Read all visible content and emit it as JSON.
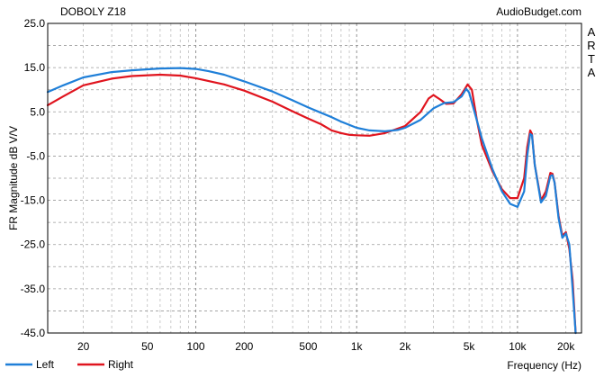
{
  "header": {
    "title": "DOBOLY Z18",
    "source": "AudioBudget.com",
    "side_text": [
      "A",
      "R",
      "T",
      "A"
    ]
  },
  "chart_data": {
    "type": "line",
    "title": "DOBOLY Z18",
    "xlabel": "Frequency (Hz)",
    "ylabel": "FR Magnitude dB V/V",
    "x_scale": "log",
    "xlim": [
      12,
      25000
    ],
    "ylim": [
      -45,
      25
    ],
    "y_ticks": [
      25.0,
      15.0,
      5.0,
      -5.0,
      -15.0,
      -25.0,
      -35.0,
      -45.0
    ],
    "y_tick_labels": [
      "25.0",
      "15.0",
      "5.0",
      "-5.0",
      "-15.0",
      "-25.0",
      "-35.0",
      "-45.0"
    ],
    "x_ticks": [
      20,
      50,
      100,
      200,
      500,
      1000,
      2000,
      5000,
      10000,
      20000
    ],
    "x_tick_labels": [
      "20",
      "50",
      "100",
      "200",
      "500",
      "1k",
      "2k",
      "5k",
      "10k",
      "20k"
    ],
    "grid": true,
    "legend_position": "bottom-left",
    "series": [
      {
        "name": "Left",
        "color": "#1f7fd8",
        "points": [
          [
            12,
            9.5
          ],
          [
            15,
            11
          ],
          [
            20,
            12.8
          ],
          [
            30,
            14
          ],
          [
            40,
            14.4
          ],
          [
            60,
            14.8
          ],
          [
            80,
            14.9
          ],
          [
            100,
            14.7
          ],
          [
            120,
            14.2
          ],
          [
            150,
            13.4
          ],
          [
            200,
            11.9
          ],
          [
            300,
            9.6
          ],
          [
            400,
            7.6
          ],
          [
            500,
            6
          ],
          [
            600,
            4.8
          ],
          [
            700,
            3.8
          ],
          [
            800,
            2.8
          ],
          [
            1000,
            1.4
          ],
          [
            1200,
            0.8
          ],
          [
            1500,
            0.6
          ],
          [
            1800,
            0.9
          ],
          [
            2000,
            1.4
          ],
          [
            2500,
            3.2
          ],
          [
            3000,
            5.8
          ],
          [
            3500,
            7
          ],
          [
            4000,
            7.2
          ],
          [
            4500,
            8.5
          ],
          [
            4800,
            10.2
          ],
          [
            5000,
            9.4
          ],
          [
            5500,
            4
          ],
          [
            6000,
            -1
          ],
          [
            7000,
            -8
          ],
          [
            8000,
            -13
          ],
          [
            9000,
            -15.8
          ],
          [
            10000,
            -16.5
          ],
          [
            11000,
            -13
          ],
          [
            11500,
            -5
          ],
          [
            12000,
            0
          ],
          [
            12300,
            -0.3
          ],
          [
            12800,
            -7
          ],
          [
            14000,
            -15.5
          ],
          [
            15000,
            -14
          ],
          [
            16000,
            -9.5
          ],
          [
            16500,
            -9.3
          ],
          [
            17000,
            -11
          ],
          [
            18000,
            -19
          ],
          [
            19000,
            -23.5
          ],
          [
            20000,
            -22.5
          ],
          [
            21000,
            -25
          ],
          [
            22000,
            -35
          ],
          [
            23000,
            -45
          ]
        ]
      },
      {
        "name": "Right",
        "color": "#e0141e",
        "points": [
          [
            12,
            6.5
          ],
          [
            15,
            8.5
          ],
          [
            20,
            11
          ],
          [
            30,
            12.5
          ],
          [
            40,
            13.1
          ],
          [
            60,
            13.4
          ],
          [
            80,
            13.2
          ],
          [
            100,
            12.6
          ],
          [
            150,
            11.2
          ],
          [
            200,
            9.8
          ],
          [
            300,
            7.3
          ],
          [
            400,
            5.1
          ],
          [
            500,
            3.5
          ],
          [
            600,
            2.2
          ],
          [
            700,
            0.8
          ],
          [
            800,
            0.2
          ],
          [
            900,
            -0.2
          ],
          [
            1000,
            -0.3
          ],
          [
            1200,
            -0.4
          ],
          [
            1500,
            0.2
          ],
          [
            2000,
            1.8
          ],
          [
            2500,
            5
          ],
          [
            2800,
            8
          ],
          [
            3000,
            8.8
          ],
          [
            3300,
            7.8
          ],
          [
            3600,
            6.8
          ],
          [
            4000,
            6.9
          ],
          [
            4500,
            9
          ],
          [
            4900,
            11.2
          ],
          [
            5200,
            10
          ],
          [
            5600,
            3
          ],
          [
            6000,
            -2.5
          ],
          [
            7000,
            -8.5
          ],
          [
            8000,
            -12.5
          ],
          [
            9000,
            -14.5
          ],
          [
            10000,
            -14.5
          ],
          [
            11000,
            -10
          ],
          [
            11500,
            -3
          ],
          [
            12000,
            0.8
          ],
          [
            12300,
            0
          ],
          [
            12800,
            -7
          ],
          [
            14000,
            -15
          ],
          [
            15000,
            -13
          ],
          [
            16000,
            -8.8
          ],
          [
            16500,
            -9
          ],
          [
            17000,
            -11
          ],
          [
            18000,
            -18.5
          ],
          [
            19000,
            -23
          ],
          [
            20000,
            -22.2
          ],
          [
            21000,
            -26
          ],
          [
            22000,
            -33
          ],
          [
            23000,
            -45
          ]
        ]
      }
    ]
  }
}
